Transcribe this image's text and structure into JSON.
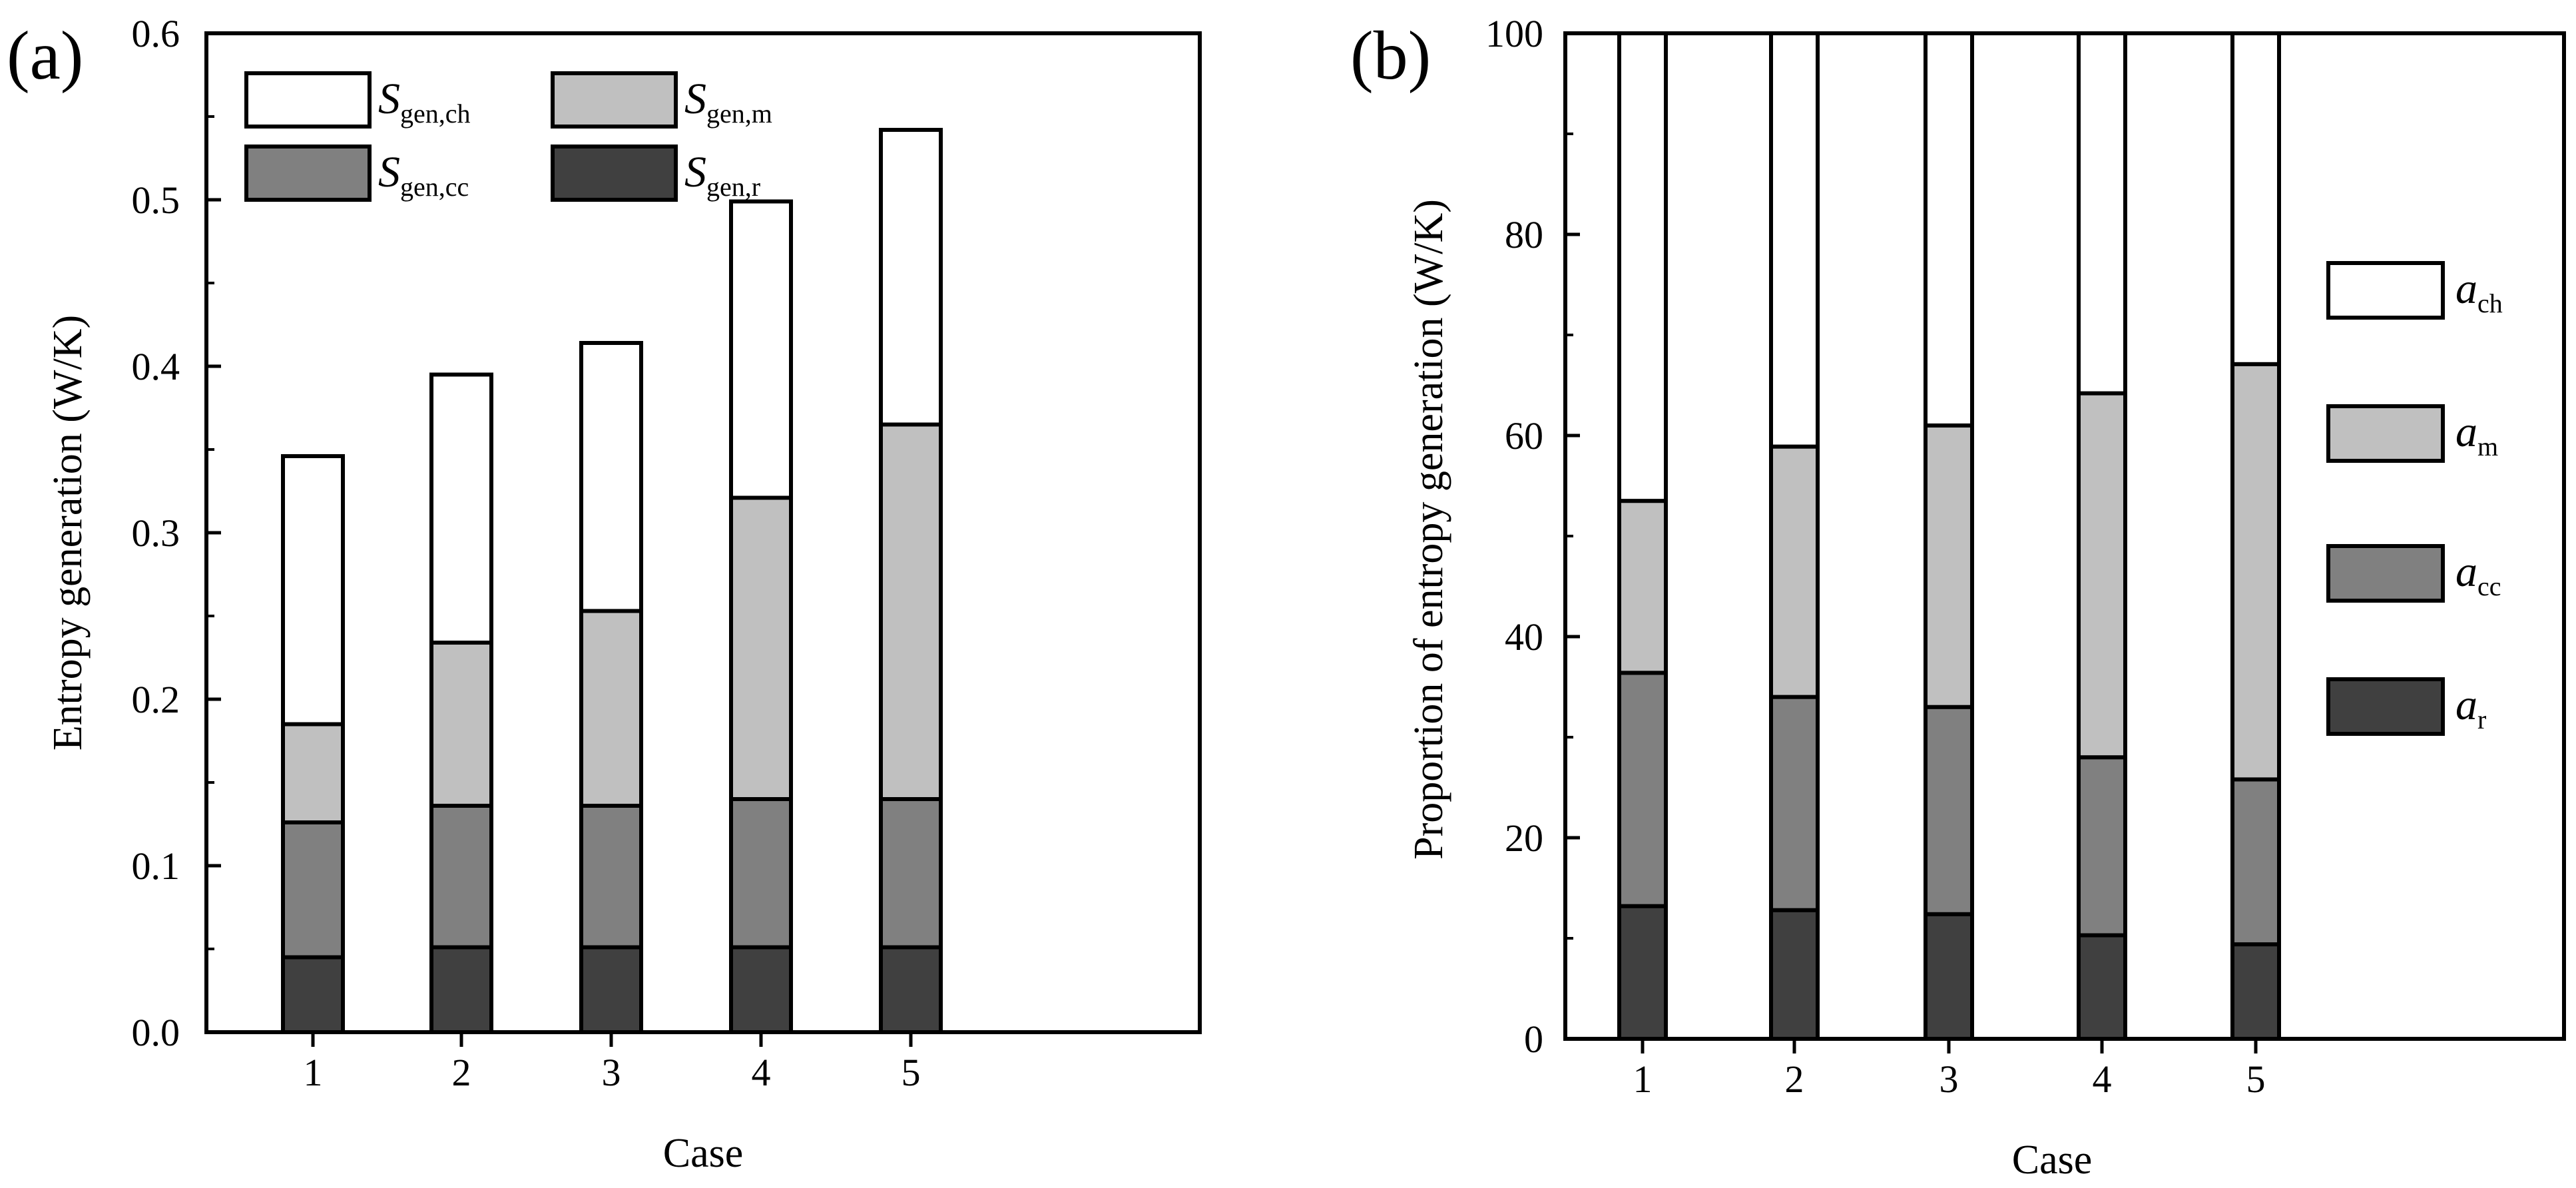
{
  "figure": {
    "colors": {
      "ch": "#ffffff",
      "m": "#c0c0c0",
      "cc": "#808080",
      "r": "#404040",
      "stroke": "#000000"
    }
  },
  "chart_data": [
    {
      "panel_label": "(a)",
      "type": "bar",
      "stacked": true,
      "xlabel": "Case",
      "ylabel": "Entropy generation (W/K)",
      "categories": [
        "1",
        "2",
        "3",
        "4",
        "5"
      ],
      "ylim": [
        0.0,
        0.6
      ],
      "yticks": [
        "0.0",
        "0.1",
        "0.2",
        "0.3",
        "0.4",
        "0.5",
        "0.6"
      ],
      "legend_position": "top-left",
      "series": [
        {
          "key": "r",
          "label": "S",
          "sub": "gen,r",
          "values": [
            0.045,
            0.051,
            0.051,
            0.051,
            0.051
          ]
        },
        {
          "key": "cc",
          "label": "S",
          "sub": "gen,cc",
          "values": [
            0.081,
            0.085,
            0.085,
            0.089,
            0.089
          ]
        },
        {
          "key": "m",
          "label": "S",
          "sub": "gen,m",
          "values": [
            0.059,
            0.098,
            0.117,
            0.181,
            0.225
          ]
        },
        {
          "key": "ch",
          "label": "S",
          "sub": "gen,ch",
          "values": [
            0.161,
            0.161,
            0.161,
            0.178,
            0.177
          ]
        }
      ]
    },
    {
      "panel_label": "(b)",
      "type": "bar",
      "stacked": true,
      "xlabel": "Case",
      "ylabel": "Proportion of entropy generation (W/K)",
      "categories": [
        "1",
        "2",
        "3",
        "4",
        "5"
      ],
      "ylim": [
        0,
        100
      ],
      "yticks": [
        "0",
        "20",
        "40",
        "60",
        "80",
        "100"
      ],
      "legend_position": "right",
      "series": [
        {
          "key": "r",
          "label": "a",
          "sub": "r",
          "values": [
            13.2,
            12.8,
            12.4,
            10.3,
            9.4
          ]
        },
        {
          "key": "cc",
          "label": "a",
          "sub": "cc",
          "values": [
            23.2,
            21.2,
            20.6,
            17.7,
            16.4
          ]
        },
        {
          "key": "m",
          "label": "a",
          "sub": "m",
          "values": [
            17.1,
            24.9,
            28.0,
            36.2,
            41.3
          ]
        },
        {
          "key": "ch",
          "label": "a",
          "sub": "ch",
          "values": [
            46.5,
            41.1,
            39.0,
            35.8,
            32.9
          ]
        }
      ]
    }
  ]
}
